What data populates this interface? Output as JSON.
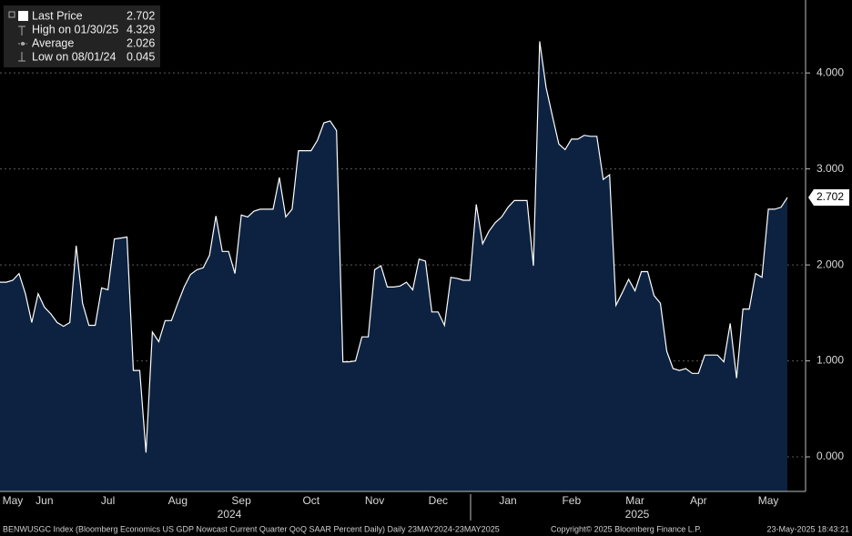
{
  "chart_data": {
    "type": "area",
    "fill_color": "#0c2240",
    "line_color": "#ffffff",
    "categories": [
      null,
      null,
      "May",
      null,
      null,
      null,
      null,
      "Jun",
      null,
      null,
      null,
      null,
      null,
      null,
      null,
      null,
      null,
      "Jul",
      null,
      null,
      null,
      null,
      null,
      null,
      null,
      null,
      null,
      null,
      "Aug",
      null,
      null,
      null,
      null,
      null,
      null,
      null,
      null,
      null,
      "Sep",
      null,
      null,
      null,
      null,
      null,
      null,
      null,
      null,
      null,
      null,
      "Oct",
      null,
      null,
      null,
      null,
      null,
      null,
      null,
      null,
      null,
      "Nov",
      null,
      null,
      null,
      null,
      null,
      null,
      null,
      null,
      null,
      "Dec",
      null,
      null,
      null,
      null,
      null,
      null,
      null,
      null,
      null,
      null,
      "Jan",
      null,
      null,
      null,
      null,
      null,
      null,
      null,
      null,
      null,
      "Feb",
      null,
      null,
      null,
      null,
      null,
      null,
      null,
      null,
      null,
      "Mar",
      null,
      null,
      null,
      null,
      null,
      null,
      null,
      null,
      null,
      "Apr",
      null,
      null,
      null,
      null,
      null,
      null,
      null,
      null,
      null,
      null,
      "May",
      null,
      null,
      null
    ],
    "values": [
      1.82,
      1.82,
      1.84,
      1.91,
      1.7,
      1.4,
      1.7,
      1.56,
      1.49,
      1.4,
      1.36,
      1.4,
      2.2,
      1.6,
      1.37,
      1.37,
      1.76,
      1.74,
      2.27,
      2.28,
      2.29,
      0.9,
      0.9,
      0.045,
      1.3,
      1.2,
      1.42,
      1.42,
      1.6,
      1.77,
      1.9,
      1.95,
      1.97,
      2.1,
      2.51,
      2.14,
      2.14,
      1.91,
      2.52,
      2.5,
      2.56,
      2.58,
      2.58,
      2.58,
      2.91,
      2.5,
      2.58,
      3.19,
      3.19,
      3.19,
      3.3,
      3.48,
      3.5,
      3.4,
      0.99,
      0.99,
      1.0,
      1.25,
      1.25,
      1.95,
      1.99,
      1.77,
      1.77,
      1.78,
      1.82,
      1.74,
      2.06,
      2.04,
      1.51,
      1.51,
      1.37,
      1.87,
      1.86,
      1.84,
      1.84,
      2.63,
      2.22,
      2.35,
      2.44,
      2.5,
      2.6,
      2.67,
      2.67,
      2.67,
      1.99,
      4.329,
      3.85,
      3.55,
      3.26,
      3.2,
      3.31,
      3.31,
      3.35,
      3.34,
      3.34,
      2.89,
      2.94,
      1.58,
      1.71,
      1.85,
      1.73,
      1.93,
      1.93,
      1.68,
      1.6,
      1.1,
      0.92,
      0.9,
      0.92,
      0.87,
      0.87,
      1.06,
      1.06,
      1.06,
      0.99,
      1.39,
      0.82,
      1.54,
      1.54,
      1.91,
      1.87,
      2.58,
      2.58,
      2.6,
      2.702
    ],
    "ylim": [
      -0.36,
      4.76
    ],
    "yticks": [
      {
        "value": 0,
        "label": "0.000"
      },
      {
        "value": 1,
        "label": "1.000"
      },
      {
        "value": 2,
        "label": "2.000"
      },
      {
        "value": 3,
        "label": "3.000"
      },
      {
        "value": 4,
        "label": "4.000"
      }
    ],
    "grid": true,
    "year_labels": [
      "2024",
      "2025"
    ],
    "legend_stats": [
      {
        "label": "Last Price",
        "value": 2.702
      },
      {
        "label": "High on 01/30/25",
        "value": 4.329
      },
      {
        "label": "Average",
        "value": 2.026
      },
      {
        "label": "Low on 08/01/24",
        "value": 0.045
      }
    ]
  },
  "footer": {
    "left": "BENWUSGC Index (Bloomberg Economics US GDP Nowcast Current Quarter QoQ SAAR Percent Daily)  Daily 23MAY2024-23MAY2025",
    "center": "Copyright© 2025 Bloomberg Finance L.P.",
    "right": "23-May-2025 18:43:21"
  }
}
